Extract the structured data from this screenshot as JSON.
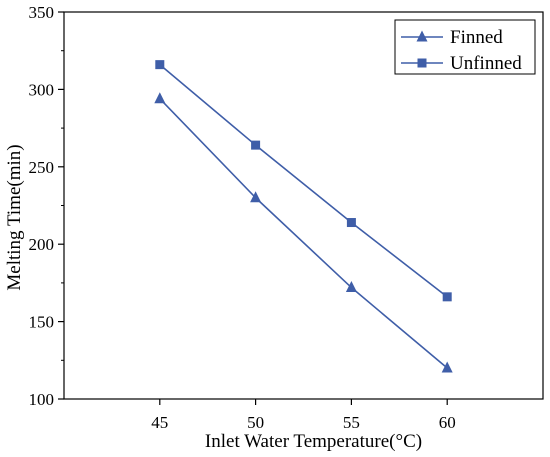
{
  "chart_data": {
    "type": "line",
    "title": "",
    "xlabel": "Inlet Water Temperature(°C)",
    "ylabel": "Melting Time(min)",
    "x": [
      45,
      50,
      55,
      60
    ],
    "xlim": [
      40,
      65
    ],
    "ylim": [
      100,
      350
    ],
    "x_ticks": [
      45,
      50,
      55,
      60
    ],
    "y_ticks": [
      100,
      150,
      200,
      250,
      300,
      350
    ],
    "grid": false,
    "legend_position": "top-right",
    "series": [
      {
        "name": "Finned",
        "marker": "triangle",
        "color": "#3f5ea8",
        "values": [
          294,
          230,
          172,
          120
        ]
      },
      {
        "name": "Unfinned",
        "marker": "square",
        "color": "#3f5ea8",
        "values": [
          316,
          264,
          214,
          166
        ]
      }
    ]
  }
}
